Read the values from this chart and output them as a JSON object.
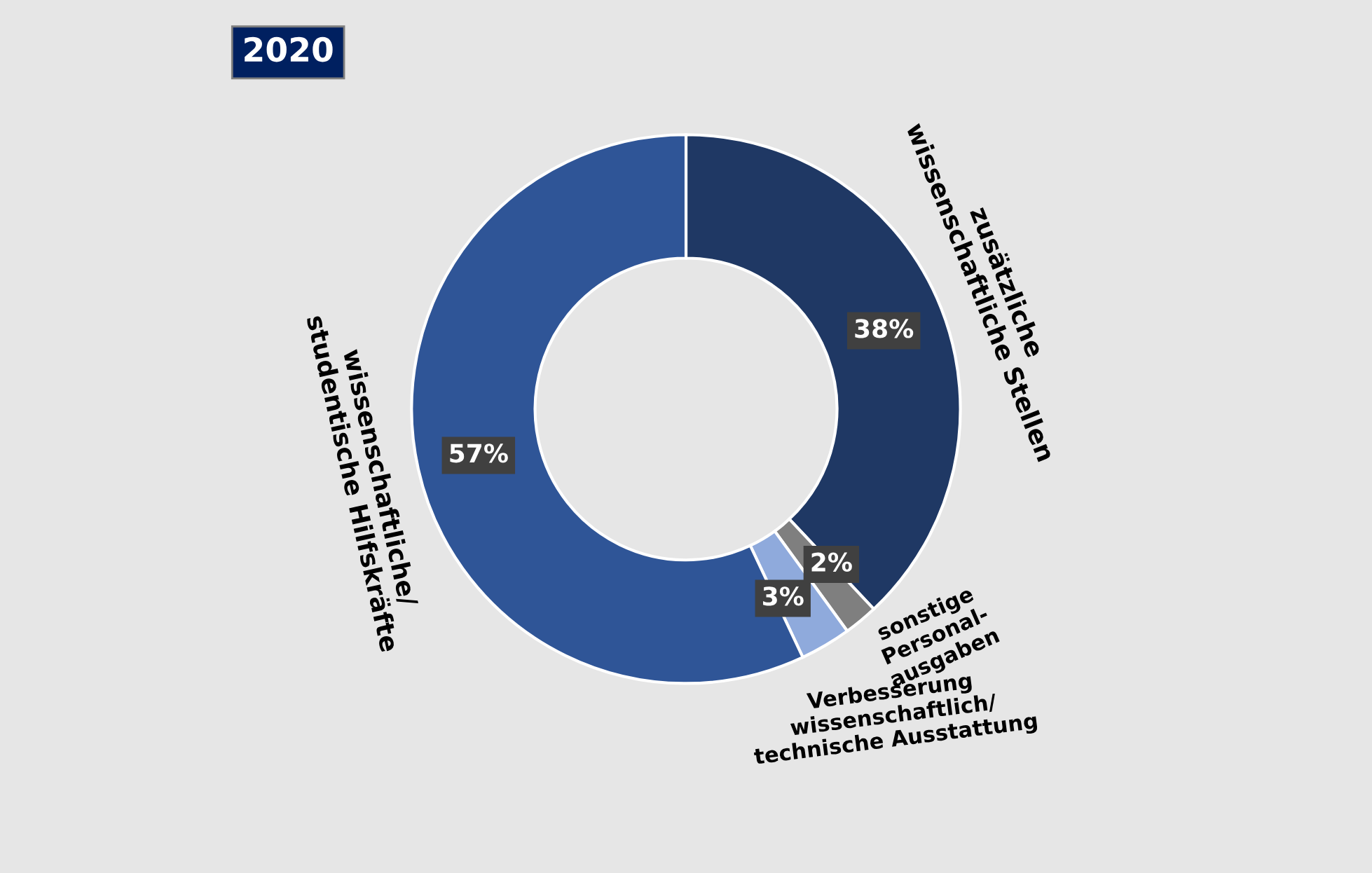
{
  "chart_data": {
    "type": "donut",
    "title": "2020",
    "categories": [
      "zusätzliche\nwissenschaftliche Stellen",
      "sonstige\nPersonal-\nausgaben",
      "Verbesserung\nwissenschaftlich/\ntechnische Ausstattung",
      "wissenschaftliche/\nstudentische Hilfskräfte"
    ],
    "values": [
      38,
      2,
      3,
      57
    ],
    "colors": [
      "#1f3864",
      "#7f7f7f",
      "#8faadc",
      "#2f5597"
    ],
    "value_labels": [
      "38%",
      "2%",
      "3%",
      "57%"
    ],
    "legend": false
  }
}
